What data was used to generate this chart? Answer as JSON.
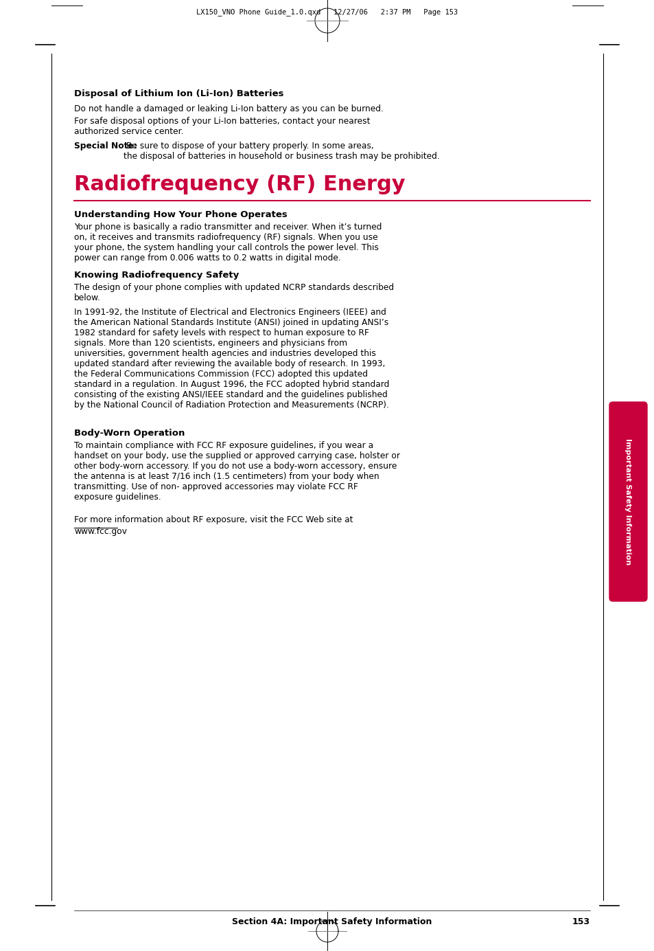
{
  "bg_color": "#ffffff",
  "header_text": "LX150_VNO Phone Guide_1.0.qxd   12/27/06   2:37 PM   Page 153",
  "section_title": "Radiofrequency (RF) Energy",
  "section_title_color": "#c8003c",
  "sidebar_color": "#c8003c",
  "sidebar_text": "Important Safety Information",
  "footer_text": "Section 4A: Important Safety Information",
  "footer_page": "153"
}
